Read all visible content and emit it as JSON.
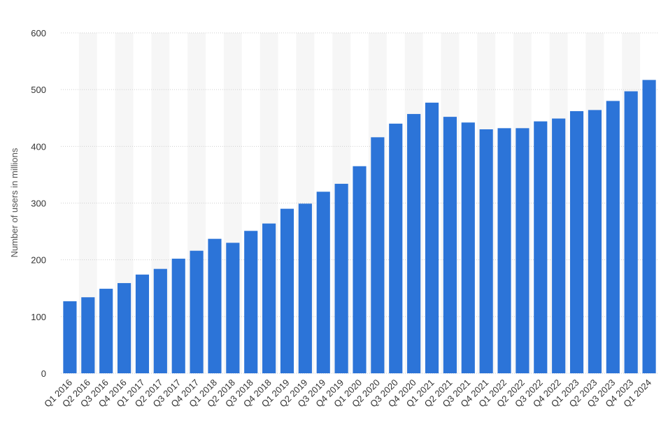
{
  "chart_data": {
    "type": "bar",
    "title": "",
    "xlabel": "",
    "ylabel": "Number of users in millions",
    "ylim": [
      0,
      600
    ],
    "yticks": [
      0,
      100,
      200,
      300,
      400,
      500,
      600
    ],
    "grid": true,
    "legend": "none",
    "bar_color": "#2c74d8",
    "categories": [
      "Q1 2016",
      "Q2 2016",
      "Q3 2016",
      "Q4 2016",
      "Q1 2017",
      "Q2 2017",
      "Q3 2017",
      "Q4 2017",
      "Q1 2018",
      "Q2 2018",
      "Q3 2018",
      "Q4 2018",
      "Q1 2019",
      "Q2 2019",
      "Q3 2019",
      "Q4 2019",
      "Q1 2020",
      "Q2 2020",
      "Q3 2020",
      "Q4 2020",
      "Q1 2021",
      "Q2 2021",
      "Q3 2021",
      "Q4 2021",
      "Q1 2022",
      "Q2 2022",
      "Q3 2022",
      "Q4 2022",
      "Q1 2023",
      "Q2 2023",
      "Q3 2023",
      "Q4 2023",
      "Q1 2024"
    ],
    "values": [
      127,
      134,
      149,
      159,
      174,
      184,
      202,
      216,
      237,
      230,
      251,
      264,
      290,
      299,
      320,
      334,
      365,
      416,
      440,
      457,
      477,
      452,
      442,
      430,
      432,
      432,
      444,
      449,
      462,
      464,
      480,
      497,
      517
    ]
  }
}
